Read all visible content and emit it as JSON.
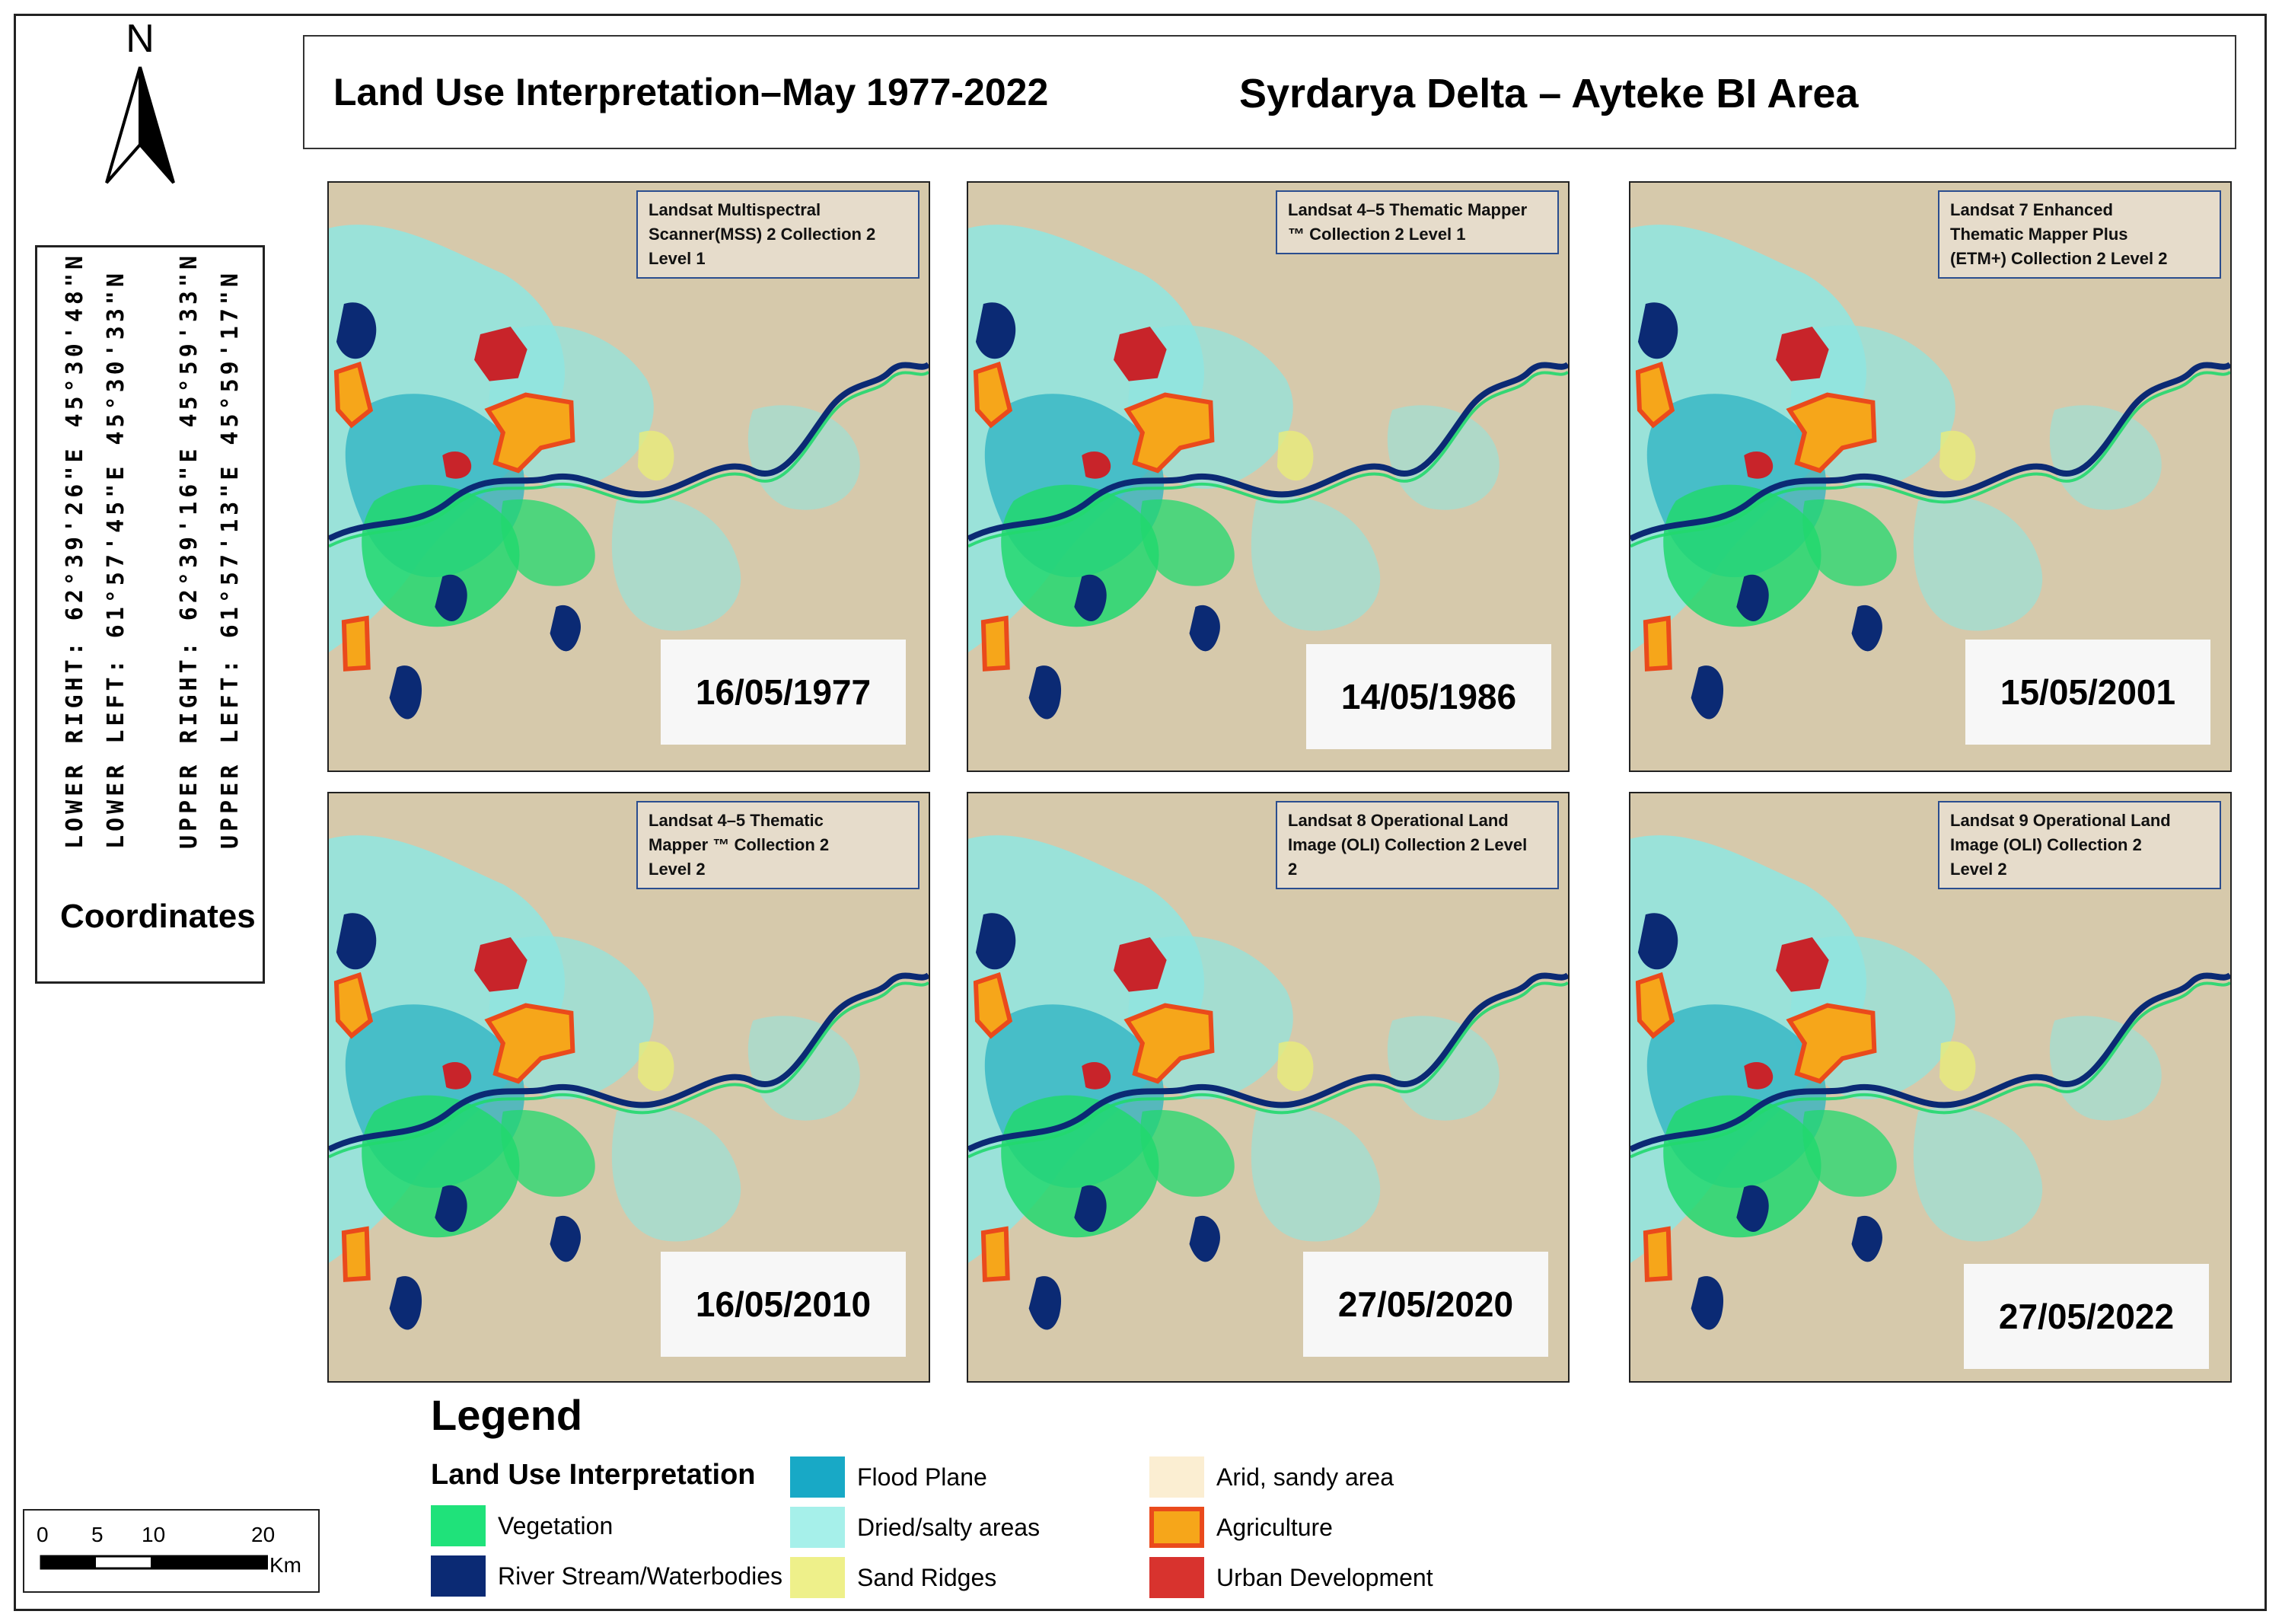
{
  "title": {
    "left": "Land Use Interpretation–May 1977-2022",
    "right": "Syrdarya Delta – Ayteke BI Area"
  },
  "north_label": "N",
  "coordinates": {
    "heading": "Coordinates",
    "lines": [
      "LOWER RIGHT: 62°39'26\"E 45°30'48\"N",
      "LOWER LEFT: 61°57'45\"E 45°30'33\"N",
      "UPPER RIGHT: 62°39'16\"E 45°59'33\"N",
      "UPPER LEFT: 61°57'13\"E 45°59'17\"N"
    ]
  },
  "panels": [
    {
      "date": "16/05/1977",
      "sensor": [
        "Landsat Multispectral",
        "Scanner(MSS) 2 Collection  2",
        "Level 1"
      ]
    },
    {
      "date": "14/05/1986",
      "sensor": [
        "Landsat 4–5 Thematic Mapper",
        "™ Collection  2 Level 1"
      ]
    },
    {
      "date": "15/05/2001",
      "sensor": [
        "Landsat 7 Enhanced",
        "Thematic Mapper  Plus",
        "(ETM+) Collection  2 Level 2"
      ]
    },
    {
      "date": "16/05/2010",
      "sensor": [
        "Landsat 4–5 Thematic",
        "Mapper ™ Collection  2",
        "Level 2"
      ]
    },
    {
      "date": "27/05/2020",
      "sensor": [
        "Landsat 8 Operational  Land",
        "Image (OLI) Collection 2 Level",
        "2"
      ]
    },
    {
      "date": "27/05/2022",
      "sensor": [
        "Landsat 9 Operational  Land",
        "Image (OLI) Collection  2",
        "Level 2"
      ]
    }
  ],
  "legend": {
    "title": "Legend",
    "subtitle": "Land Use Interpretation",
    "items": [
      {
        "label": "Vegetation",
        "color": "#1fe27a"
      },
      {
        "label": "River Stream/Waterbodies",
        "color": "#0b2a74"
      },
      {
        "label": "Flood Plane",
        "color": "#18a9c6"
      },
      {
        "label": "Dried/salty areas",
        "color": "#a6f0ea"
      },
      {
        "label": "Sand Ridges",
        "color": "#eef08a"
      },
      {
        "label": "Arid, sandy area",
        "color": "#fbeed2"
      },
      {
        "label": "Agriculture",
        "color": "#f6a61a",
        "outline": "#ea4a1c"
      },
      {
        "label": "Urban Development",
        "color": "#d8332e"
      }
    ]
  },
  "scale_bar": {
    "ticks": [
      "0",
      "5",
      "10",
      "20"
    ],
    "unit": "Km"
  },
  "map_colors": {
    "arid": "#d6c9ab",
    "salty": "#8fe6e0",
    "flood": "#2bb2c2",
    "vegetation": "#22d86e",
    "water": "#0b2a74",
    "agriculture_fill": "#f6a61a",
    "agriculture_edge": "#ea4a1c",
    "urban": "#c8242a",
    "sand": "#e9ec7a"
  }
}
